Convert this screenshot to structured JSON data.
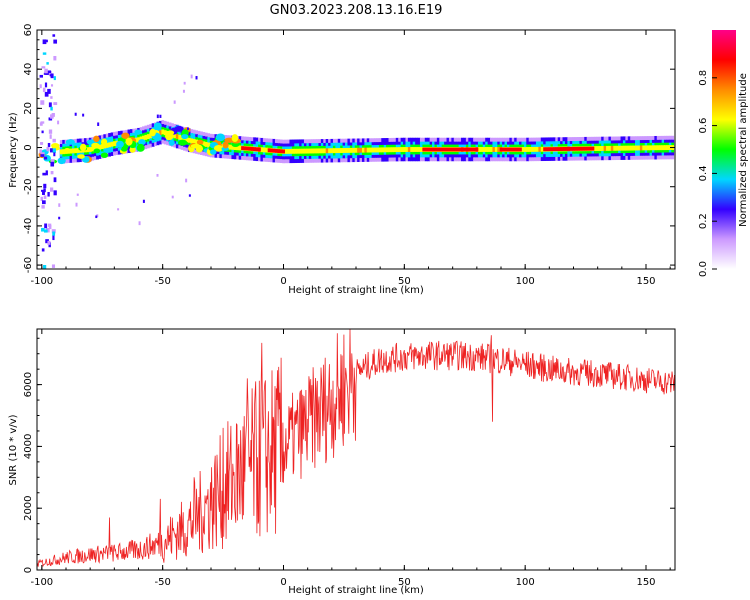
{
  "figure_title": "GN03.2023.208.13.16.E19",
  "chart_data": [
    {
      "type": "heatmap",
      "title": "",
      "xlabel": "Height of straight line (km)",
      "ylabel": "Frequency (Hz)",
      "xlim": [
        -102,
        162
      ],
      "ylim": [
        -62,
        60
      ],
      "xticks": [
        -100,
        -50,
        0,
        50,
        100,
        150
      ],
      "yticks": [
        -60,
        -40,
        -20,
        0,
        20,
        40,
        60
      ],
      "colorbar": {
        "label": "Normalized spectral amplitude",
        "ticks": [
          0.0,
          0.2,
          0.4,
          0.6,
          0.8
        ],
        "range": [
          0,
          1
        ],
        "colormap": [
          "#ffffff",
          "#cc99ff",
          "#3300ff",
          "#00d7ff",
          "#00ff00",
          "#ffff00",
          "#ff8c00",
          "#ff0000",
          "#ff0088"
        ]
      },
      "ridge": [
        {
          "x": -100,
          "f": -3
        },
        {
          "x": -90,
          "f": -2
        },
        {
          "x": -80,
          "f": -1
        },
        {
          "x": -70,
          "f": 2
        },
        {
          "x": -60,
          "f": 4
        },
        {
          "x": -50,
          "f": 8
        },
        {
          "x": -40,
          "f": 4
        },
        {
          "x": -30,
          "f": 1
        },
        {
          "x": -20,
          "f": 0
        },
        {
          "x": 0,
          "f": -2
        },
        {
          "x": 50,
          "f": -1
        },
        {
          "x": 100,
          "f": -1
        },
        {
          "x": 160,
          "f": 0
        }
      ]
    },
    {
      "type": "line",
      "title": "",
      "xlabel": "Height of straight line (km)",
      "ylabel": "SNR (10 * v/v)",
      "xlim": [
        -102,
        162
      ],
      "ylim": [
        0,
        7800
      ],
      "xticks": [
        -100,
        -50,
        0,
        50,
        100,
        150
      ],
      "yticks": [
        0,
        2000,
        4000,
        6000
      ],
      "series_color": "#ee2222",
      "envelope": [
        {
          "x": -102,
          "y": 200
        },
        {
          "x": -90,
          "y": 400
        },
        {
          "x": -80,
          "y": 500
        },
        {
          "x": -70,
          "y": 550
        },
        {
          "x": -60,
          "y": 650
        },
        {
          "x": -50,
          "y": 900
        },
        {
          "x": -40,
          "y": 1400
        },
        {
          "x": -30,
          "y": 2200
        },
        {
          "x": -20,
          "y": 3000
        },
        {
          "x": -10,
          "y": 3600
        },
        {
          "x": 0,
          "y": 4000
        },
        {
          "x": 10,
          "y": 4700
        },
        {
          "x": 20,
          "y": 5500
        },
        {
          "x": 30,
          "y": 6400
        },
        {
          "x": 40,
          "y": 6800
        },
        {
          "x": 50,
          "y": 6900
        },
        {
          "x": 60,
          "y": 6950
        },
        {
          "x": 70,
          "y": 6950
        },
        {
          "x": 80,
          "y": 6900
        },
        {
          "x": 90,
          "y": 6800
        },
        {
          "x": 100,
          "y": 6650
        },
        {
          "x": 110,
          "y": 6500
        },
        {
          "x": 120,
          "y": 6400
        },
        {
          "x": 130,
          "y": 6350
        },
        {
          "x": 140,
          "y": 6250
        },
        {
          "x": 150,
          "y": 6150
        },
        {
          "x": 162,
          "y": 6050
        }
      ],
      "peaks": [
        {
          "x": -72,
          "y": 1700
        },
        {
          "x": -51,
          "y": 2300
        },
        {
          "x": -37,
          "y": 3000
        },
        {
          "x": -25,
          "y": 4600
        },
        {
          "x": -15,
          "y": 6200
        },
        {
          "x": -9,
          "y": 7350
        },
        {
          "x": 86,
          "y": 7600
        },
        {
          "x": 86.5,
          "y": 4800
        }
      ]
    }
  ]
}
